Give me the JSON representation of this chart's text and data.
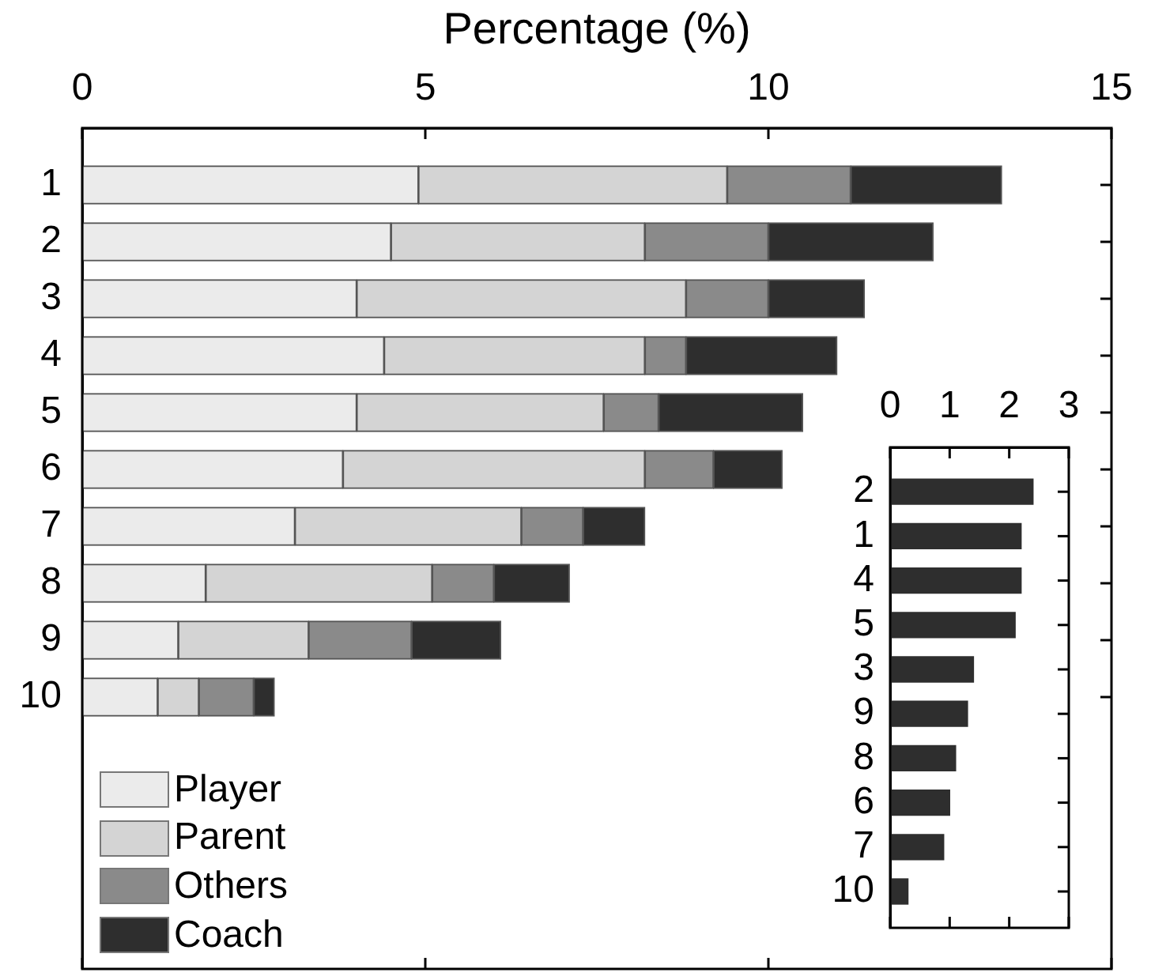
{
  "chart_data": [
    {
      "type": "bar",
      "orientation": "horizontal",
      "stacked": true,
      "xlabel": "Percentage (%)",
      "categories": [
        "1",
        "2",
        "3",
        "4",
        "5",
        "6",
        "7",
        "8",
        "9",
        "10"
      ],
      "series": [
        {
          "name": "Player",
          "color": "#ebebeb",
          "values": [
            4.9,
            4.5,
            4.0,
            4.4,
            4.0,
            3.8,
            3.1,
            1.8,
            1.4,
            1.1
          ]
        },
        {
          "name": "Parent",
          "color": "#d4d4d4",
          "values": [
            4.5,
            3.7,
            4.8,
            3.8,
            3.6,
            4.4,
            3.3,
            3.3,
            1.9,
            0.6
          ]
        },
        {
          "name": "Others",
          "color": "#8a8a8a",
          "values": [
            1.8,
            1.8,
            1.2,
            0.6,
            0.8,
            1.0,
            0.9,
            0.9,
            1.5,
            0.8
          ]
        },
        {
          "name": "Coach",
          "color": "#2e2e2e",
          "values": [
            2.2,
            2.4,
            1.4,
            2.2,
            2.1,
            1.0,
            0.9,
            1.1,
            1.3,
            0.3
          ]
        }
      ],
      "xlim": [
        0,
        15
      ],
      "xticks": [
        0,
        5,
        10,
        15
      ],
      "grid": false,
      "legend": "bottom left"
    },
    {
      "type": "bar",
      "orientation": "horizontal",
      "categories": [
        "2",
        "1",
        "4",
        "5",
        "3",
        "9",
        "8",
        "6",
        "7",
        "10"
      ],
      "values": [
        2.4,
        2.2,
        2.2,
        2.1,
        1.4,
        1.3,
        1.1,
        1.0,
        0.9,
        0.3
      ],
      "color": "#2e2e2e",
      "xlim": [
        0,
        3
      ],
      "xticks": [
        0,
        1,
        2,
        3
      ],
      "grid": false
    }
  ]
}
